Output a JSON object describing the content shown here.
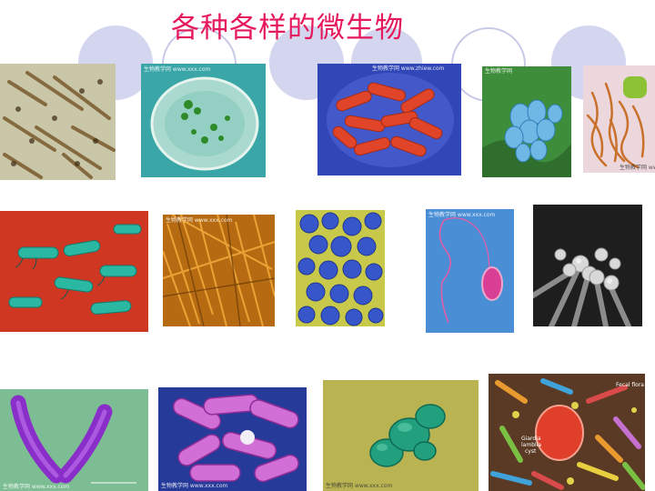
{
  "slide": {
    "title": "各种各样的微生物",
    "colors": {
      "title": "#e5195c",
      "circle_fill": "#d4d6ef",
      "circle_outline": "#c7c9e6",
      "background": "#ffffff"
    }
  },
  "images": {
    "paramecium": {
      "caption": "生物教学网 www.xxx.com"
    },
    "red_rods": {
      "caption": "生物教学网 www.zhiew.com"
    },
    "blue_spores": {
      "caption": "生物教学网"
    },
    "filaments": {
      "caption": "生物教学网 www.xxx.com"
    },
    "fibrous_mat": {
      "caption": "生物教学网 www.xxx.com"
    },
    "flagellate": {
      "caption": "生物教学网 www.xxx.com"
    },
    "green_v_rods": {
      "caption": "生物教学网 www.xxx.com"
    },
    "pink_rods": {
      "caption": "生物教学网 www.xxx.com"
    },
    "yeast_budding": {
      "caption": "生物教学网 www.xxx.com"
    },
    "gut_flora": {
      "label_flora": "Fecal flora",
      "label_cyst_1": "Giardia",
      "label_cyst_2": "lamblia",
      "label_cyst_3": "cyst"
    }
  }
}
